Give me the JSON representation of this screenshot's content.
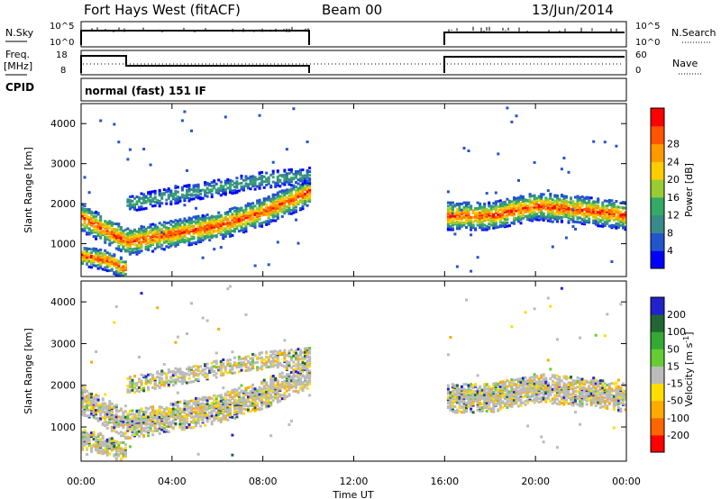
{
  "header": {
    "station": "Fort Hays West (fitACF)",
    "beam": "Beam 00",
    "date": "13/Jun/2014"
  },
  "panels": {
    "nsky": {
      "left_label": "N.Sky",
      "right_label": "N.Search",
      "left_ticks": [
        "10^5",
        "10^0"
      ],
      "right_ticks": [
        "10^5",
        "10^0"
      ]
    },
    "freq": {
      "left_label_1": "Freq.",
      "left_label_2": "[MHz]",
      "right_label": "Nave",
      "left_ticks": [
        "18",
        "8"
      ],
      "right_ticks": [
        "60",
        "0"
      ]
    },
    "cpid": {
      "left_label": "CPID",
      "mode": "normal (fast) 151 IF"
    }
  },
  "colors": {
    "power": [
      "#0000ff",
      "#2255cc",
      "#3a8a8a",
      "#33aa66",
      "#99cc33",
      "#ffcc00",
      "#ff9900",
      "#ff5500",
      "#ff0000"
    ],
    "velocity": [
      "#2222cc",
      "#226633",
      "#33aa33",
      "#66cc33",
      "#bbbbbb",
      "#ffdd00",
      "#ffaa00",
      "#ff6600",
      "#ff0000"
    ]
  },
  "chart_data": [
    {
      "type": "heatmap",
      "title": "",
      "xlabel": "",
      "ylabel": "Slant Range [km]",
      "xlim": [
        0,
        24
      ],
      "ylim": [
        180,
        4500
      ],
      "yticks": [
        1000,
        2000,
        3000,
        4000
      ],
      "colorbar": {
        "label": "Power [dB]",
        "ticks": [
          "4",
          "8",
          "12",
          "16",
          "20",
          "24",
          "28"
        ]
      },
      "data_gap_hours": [
        10,
        16
      ],
      "echo_bands": [
        {
          "name": "main",
          "t": [
            0,
            2,
            4,
            6,
            8,
            10,
            16,
            18,
            20,
            22,
            24
          ],
          "range_km": [
            1650,
            1050,
            1250,
            1450,
            1800,
            2300,
            1700,
            1700,
            1950,
            1850,
            1700
          ]
        },
        {
          "name": "upper",
          "t": [
            2,
            4,
            6,
            8,
            10
          ],
          "range_km": [
            2000,
            2200,
            2400,
            2600,
            2700
          ]
        },
        {
          "name": "near",
          "t": [
            0,
            1,
            2
          ],
          "range_km": [
            700,
            600,
            350
          ]
        }
      ]
    },
    {
      "type": "heatmap",
      "title": "",
      "xlabel": "Time UT",
      "ylabel": "Slant Range [km]",
      "xlim": [
        0,
        24
      ],
      "ylim": [
        180,
        4500
      ],
      "yticks": [
        1000,
        2000,
        3000,
        4000
      ],
      "xticks": [
        "00:00",
        "04:00",
        "08:00",
        "12:00",
        "16:00",
        "20:00",
        "00:00"
      ],
      "colorbar": {
        "label": "Velocity [m s",
        "label_sup": "-1",
        "label_end": "]",
        "ticks": [
          "200",
          "100",
          "50",
          "15",
          "-15",
          "-50",
          "-100",
          "-200"
        ]
      },
      "data_gap_hours": [
        10,
        16
      ]
    }
  ]
}
